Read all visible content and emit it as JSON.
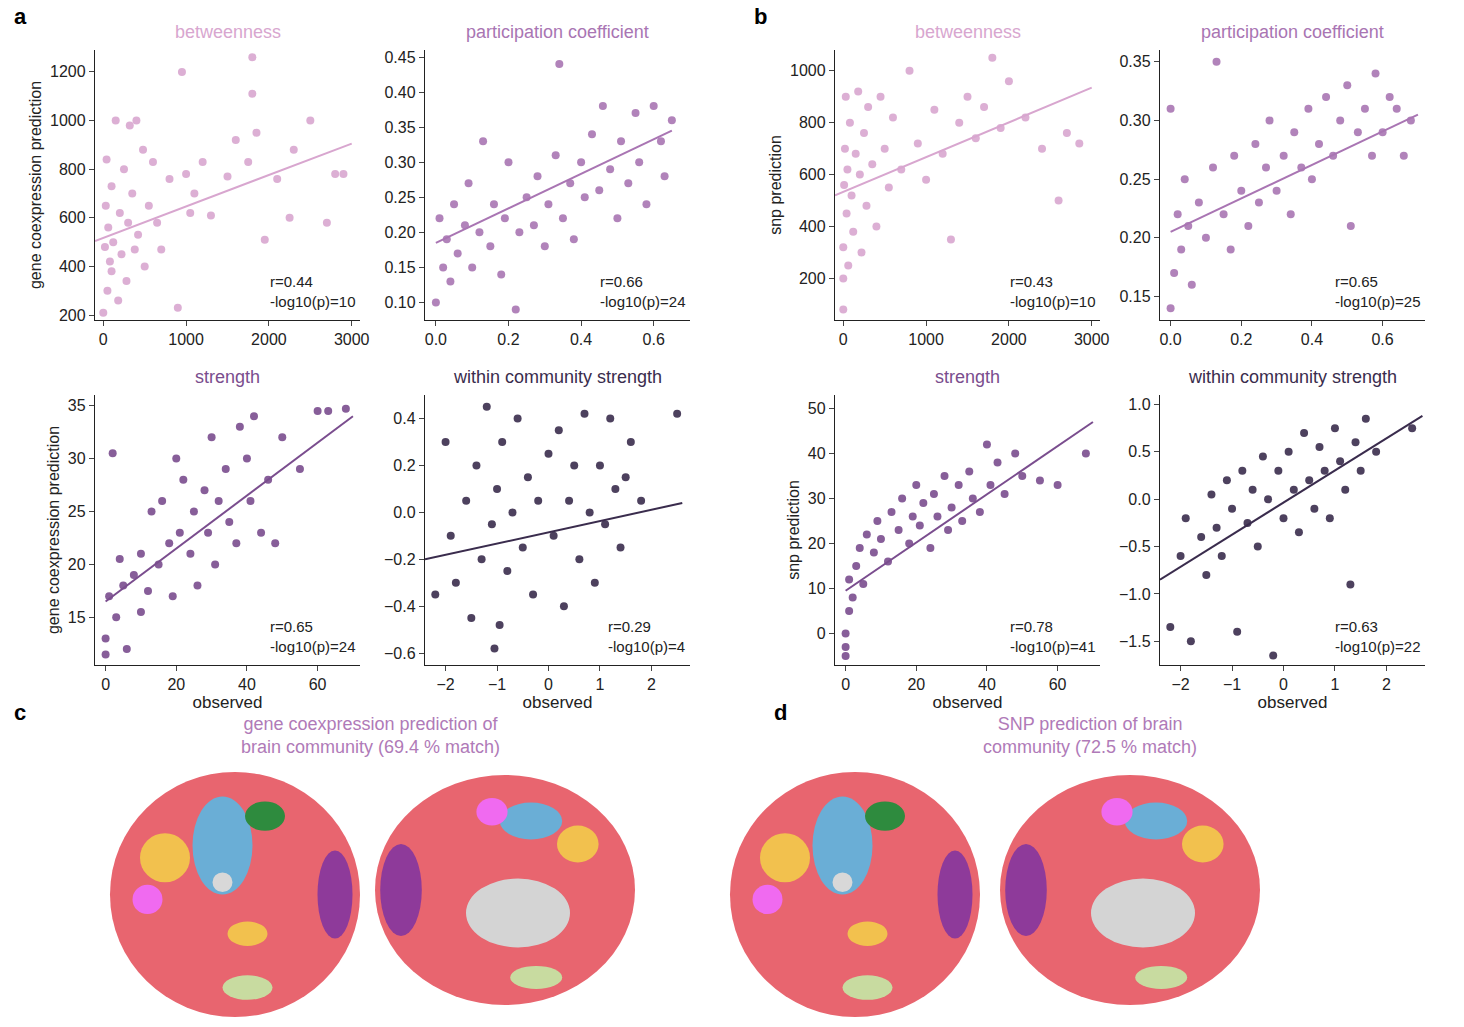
{
  "chart_data": [
    {
      "type": "scatter",
      "panel": "a",
      "title": "betweenness",
      "y_label": "gene coexpression prediction",
      "color": "#d8a6cf",
      "x": [
        0,
        20,
        30,
        40,
        50,
        60,
        80,
        100,
        100,
        120,
        150,
        180,
        200,
        220,
        250,
        280,
        300,
        320,
        350,
        380,
        400,
        420,
        480,
        500,
        550,
        600,
        650,
        700,
        800,
        900,
        950,
        1000,
        1050,
        1100,
        1200,
        1300,
        1500,
        1600,
        1750,
        1800,
        1800,
        1850,
        1950,
        2100,
        2250,
        2300,
        2500,
        2700,
        2800,
        2900
      ],
      "y": [
        210,
        480,
        650,
        840,
        300,
        560,
        420,
        730,
        380,
        500,
        1000,
        260,
        620,
        450,
        800,
        340,
        580,
        980,
        700,
        470,
        1000,
        530,
        880,
        400,
        650,
        830,
        580,
        470,
        760,
        230,
        1200,
        780,
        620,
        700,
        830,
        610,
        770,
        920,
        830,
        1260,
        1110,
        950,
        510,
        760,
        600,
        880,
        1000,
        580,
        780,
        780
      ],
      "fit": {
        "x": [
          -100,
          3000
        ],
        "y": [
          505,
          905
        ]
      },
      "xlim": [
        -100,
        3100
      ],
      "ylim": [
        180,
        1290
      ],
      "xticks": [
        0,
        1000,
        2000,
        3000
      ],
      "yticks": [
        200,
        400,
        600,
        800,
        1000,
        1200
      ],
      "annotations": [
        "r=0.44",
        "-log10(p)=10"
      ]
    },
    {
      "type": "scatter",
      "panel": "a",
      "title": "participation coefficient",
      "color": "#a975b3",
      "x": [
        0.0,
        0.01,
        0.02,
        0.03,
        0.04,
        0.05,
        0.06,
        0.08,
        0.09,
        0.1,
        0.12,
        0.13,
        0.15,
        0.16,
        0.18,
        0.19,
        0.2,
        0.22,
        0.23,
        0.25,
        0.27,
        0.28,
        0.3,
        0.31,
        0.33,
        0.34,
        0.35,
        0.37,
        0.38,
        0.4,
        0.41,
        0.43,
        0.45,
        0.46,
        0.48,
        0.5,
        0.51,
        0.53,
        0.55,
        0.56,
        0.58,
        0.6,
        0.62,
        0.63,
        0.65
      ],
      "y": [
        0.1,
        0.22,
        0.15,
        0.19,
        0.13,
        0.24,
        0.17,
        0.21,
        0.27,
        0.15,
        0.2,
        0.33,
        0.18,
        0.24,
        0.14,
        0.22,
        0.3,
        0.09,
        0.2,
        0.25,
        0.21,
        0.28,
        0.18,
        0.24,
        0.31,
        0.44,
        0.22,
        0.27,
        0.19,
        0.3,
        0.25,
        0.34,
        0.26,
        0.38,
        0.29,
        0.22,
        0.33,
        0.27,
        0.37,
        0.3,
        0.24,
        0.38,
        0.33,
        0.28,
        0.36
      ],
      "fit": {
        "x": [
          0,
          0.65
        ],
        "y": [
          0.185,
          0.345
        ]
      },
      "xlim": [
        -0.03,
        0.7
      ],
      "ylim": [
        0.075,
        0.46
      ],
      "xticks": [
        {
          "value": 0,
          "label": "0.0"
        },
        0.2,
        0.4,
        0.6
      ],
      "yticks": [
        {
          "value": 0.1,
          "label": "0.10"
        },
        0.15,
        {
          "value": 0.2,
          "label": "0.20"
        },
        0.25,
        {
          "value": 0.3,
          "label": "0.30"
        },
        0.35,
        {
          "value": 0.4,
          "label": "0.40"
        },
        0.45
      ],
      "annotations": [
        "r=0.66",
        "-log10(p)=24"
      ]
    },
    {
      "type": "scatter",
      "panel": "a",
      "title": "strength",
      "x_label": "observed",
      "y_label": "gene coexpression prediction",
      "color": "#7a4d8e",
      "x": [
        0,
        0,
        1,
        2,
        3,
        4,
        5,
        6,
        8,
        10,
        10,
        12,
        13,
        15,
        16,
        18,
        19,
        20,
        21,
        22,
        24,
        25,
        26,
        28,
        29,
        30,
        31,
        32,
        34,
        35,
        37,
        38,
        40,
        41,
        42,
        44,
        46,
        48,
        50,
        55,
        60,
        63,
        68
      ],
      "y": [
        11.5,
        13,
        17,
        30.5,
        15,
        20.5,
        18,
        12,
        19,
        21,
        15.5,
        17.5,
        25,
        20,
        26,
        22,
        17,
        30,
        23,
        28,
        21,
        25,
        18,
        27,
        23,
        32,
        20,
        26,
        29,
        24,
        22,
        33,
        30,
        26,
        34,
        23,
        28,
        22,
        32,
        29,
        34.5,
        34.5,
        34.7
      ],
      "fit": {
        "x": [
          0,
          70
        ],
        "y": [
          16.5,
          34
        ]
      },
      "xlim": [
        -3,
        72
      ],
      "ylim": [
        10.5,
        36
      ],
      "xticks": [
        0,
        20,
        40,
        60
      ],
      "yticks": [
        15,
        20,
        25,
        30,
        35
      ],
      "annotations": [
        "r=0.65",
        "-log10(p)=24"
      ]
    },
    {
      "type": "scatter",
      "panel": "a",
      "title": "within community strength",
      "x_label": "observed",
      "color": "#3a2c4d",
      "x": [
        -2.2,
        -2.0,
        -1.9,
        -1.8,
        -1.6,
        -1.5,
        -1.4,
        -1.3,
        -1.2,
        -1.1,
        -1.05,
        -1.0,
        -0.95,
        -0.9,
        -0.8,
        -0.7,
        -0.6,
        -0.5,
        -0.4,
        -0.3,
        -0.2,
        0.0,
        0.1,
        0.2,
        0.3,
        0.4,
        0.5,
        0.6,
        0.7,
        0.8,
        0.9,
        1.0,
        1.1,
        1.2,
        1.3,
        1.4,
        1.5,
        1.6,
        1.8,
        2.5
      ],
      "y": [
        -0.35,
        0.3,
        -0.1,
        -0.3,
        0.05,
        -0.45,
        0.2,
        -0.2,
        0.45,
        -0.05,
        -0.58,
        0.1,
        -0.48,
        0.3,
        -0.25,
        0.0,
        0.4,
        -0.15,
        0.15,
        -0.35,
        0.05,
        0.25,
        -0.1,
        0.35,
        -0.4,
        0.05,
        0.2,
        -0.2,
        0.42,
        0.0,
        -0.3,
        0.2,
        -0.05,
        0.4,
        0.1,
        -0.15,
        0.15,
        0.3,
        0.05,
        0.42
      ],
      "fit": {
        "x": [
          -2.4,
          2.6
        ],
        "y": [
          -0.2,
          0.04
        ]
      },
      "xlim": [
        -2.4,
        2.75
      ],
      "ylim": [
        -0.65,
        0.5
      ],
      "xticks": [
        {
          "value": -2,
          "label": "−2"
        },
        {
          "value": -1,
          "label": "−1"
        },
        0,
        1,
        2
      ],
      "yticks": [
        {
          "value": -0.6,
          "label": "−0.6"
        },
        {
          "value": -0.4,
          "label": "−0.4"
        },
        {
          "value": -0.2,
          "label": "−0.2"
        },
        {
          "value": 0,
          "label": "0.0"
        },
        0.2,
        0.4
      ],
      "annotations": [
        "r=0.29",
        "-log10(p)=4"
      ]
    },
    {
      "type": "scatter",
      "panel": "b",
      "title": "betweenness",
      "y_label": "snp prediction",
      "color": "#d8a6cf",
      "x": [
        0,
        0,
        0,
        10,
        20,
        30,
        40,
        50,
        60,
        80,
        100,
        120,
        150,
        180,
        200,
        220,
        250,
        280,
        300,
        350,
        400,
        450,
        500,
        550,
        600,
        700,
        800,
        900,
        1000,
        1100,
        1200,
        1300,
        1400,
        1500,
        1600,
        1700,
        1800,
        1900,
        2000,
        2200,
        2400,
        2600,
        2700,
        2850
      ],
      "y": [
        80,
        200,
        320,
        560,
        700,
        900,
        450,
        620,
        250,
        800,
        520,
        380,
        680,
        920,
        600,
        300,
        760,
        480,
        860,
        640,
        400,
        900,
        700,
        550,
        820,
        620,
        1000,
        720,
        580,
        850,
        680,
        350,
        800,
        900,
        740,
        860,
        1050,
        780,
        960,
        820,
        700,
        500,
        760,
        720
      ],
      "fit": {
        "x": [
          -100,
          3000
        ],
        "y": [
          520,
          935
        ]
      },
      "xlim": [
        -100,
        3100
      ],
      "ylim": [
        40,
        1080
      ],
      "xticks": [
        0,
        1000,
        2000,
        3000
      ],
      "yticks": [
        200,
        400,
        600,
        800,
        1000
      ],
      "annotations": [
        "r=0.43",
        "-log10(p)=10"
      ]
    },
    {
      "type": "scatter",
      "panel": "b",
      "title": "participation coefficient",
      "color": "#a975b3",
      "x": [
        0.0,
        0.0,
        0.01,
        0.02,
        0.03,
        0.04,
        0.05,
        0.06,
        0.08,
        0.1,
        0.12,
        0.13,
        0.15,
        0.17,
        0.18,
        0.2,
        0.22,
        0.24,
        0.25,
        0.27,
        0.28,
        0.3,
        0.32,
        0.34,
        0.35,
        0.37,
        0.39,
        0.4,
        0.42,
        0.44,
        0.46,
        0.48,
        0.5,
        0.51,
        0.53,
        0.55,
        0.57,
        0.58,
        0.6,
        0.62,
        0.64,
        0.66,
        0.68
      ],
      "y": [
        0.14,
        0.31,
        0.17,
        0.22,
        0.19,
        0.25,
        0.21,
        0.16,
        0.23,
        0.2,
        0.26,
        0.35,
        0.22,
        0.19,
        0.27,
        0.24,
        0.21,
        0.28,
        0.23,
        0.26,
        0.3,
        0.24,
        0.27,
        0.22,
        0.29,
        0.26,
        0.31,
        0.25,
        0.28,
        0.32,
        0.27,
        0.3,
        0.33,
        0.21,
        0.29,
        0.31,
        0.27,
        0.34,
        0.29,
        0.32,
        0.31,
        0.27,
        0.3
      ],
      "fit": {
        "x": [
          0,
          0.7
        ],
        "y": [
          0.205,
          0.305
        ]
      },
      "xlim": [
        -0.03,
        0.72
      ],
      "ylim": [
        0.13,
        0.36
      ],
      "xticks": [
        {
          "value": 0,
          "label": "0.0"
        },
        0.2,
        0.4,
        0.6
      ],
      "yticks": [
        0.15,
        {
          "value": 0.2,
          "label": "0.20"
        },
        0.25,
        {
          "value": 0.3,
          "label": "0.30"
        },
        0.35
      ],
      "annotations": [
        "r=0.65",
        "-log10(p)=25"
      ]
    },
    {
      "type": "scatter",
      "panel": "b",
      "title": "strength",
      "x_label": "observed",
      "y_label": "snp prediction",
      "color": "#7a4d8e",
      "x": [
        0,
        0,
        0,
        1,
        1,
        2,
        3,
        4,
        5,
        6,
        8,
        9,
        10,
        12,
        13,
        15,
        16,
        18,
        19,
        20,
        21,
        22,
        24,
        25,
        26,
        28,
        29,
        30,
        32,
        33,
        35,
        36,
        38,
        40,
        41,
        43,
        45,
        48,
        50,
        55,
        60,
        68
      ],
      "y": [
        -5,
        -3,
        0,
        5,
        12,
        8,
        15,
        19,
        11,
        22,
        18,
        25,
        21,
        16,
        27,
        23,
        30,
        20,
        26,
        33,
        24,
        29,
        19,
        31,
        26,
        35,
        23,
        28,
        33,
        25,
        36,
        30,
        27,
        42,
        33,
        38,
        31,
        40,
        35,
        34,
        33,
        40
      ],
      "fit": {
        "x": [
          0,
          70
        ],
        "y": [
          9.5,
          47
        ]
      },
      "xlim": [
        -3,
        72
      ],
      "ylim": [
        -7,
        53
      ],
      "xticks": [
        0,
        20,
        40,
        60
      ],
      "yticks": [
        0,
        10,
        20,
        30,
        40,
        50
      ],
      "annotations": [
        "r=0.78",
        "-log10(p)=41"
      ]
    },
    {
      "type": "scatter",
      "panel": "b",
      "title": "within community strength",
      "x_label": "observed",
      "color": "#3a2c4d",
      "x": [
        -2.2,
        -2.0,
        -1.9,
        -1.8,
        -1.6,
        -1.5,
        -1.4,
        -1.3,
        -1.2,
        -1.1,
        -1.0,
        -0.9,
        -0.8,
        -0.7,
        -0.6,
        -0.5,
        -0.4,
        -0.3,
        -0.2,
        -0.1,
        0.0,
        0.1,
        0.2,
        0.3,
        0.4,
        0.5,
        0.6,
        0.7,
        0.8,
        0.9,
        1.0,
        1.1,
        1.2,
        1.3,
        1.4,
        1.5,
        1.6,
        1.8,
        2.5
      ],
      "y": [
        -1.35,
        -0.6,
        -0.2,
        -1.5,
        -0.4,
        -0.8,
        0.05,
        -0.3,
        -0.6,
        0.2,
        -0.1,
        -1.4,
        0.3,
        -0.25,
        0.1,
        -0.5,
        0.45,
        0.0,
        -1.65,
        0.3,
        -0.2,
        0.5,
        0.1,
        -0.35,
        0.7,
        0.2,
        -0.1,
        0.55,
        0.3,
        -0.2,
        0.75,
        0.4,
        0.1,
        -0.9,
        0.6,
        0.3,
        0.85,
        0.5,
        0.75
      ],
      "fit": {
        "x": [
          -2.4,
          2.7
        ],
        "y": [
          -0.85,
          0.88
        ]
      },
      "xlim": [
        -2.4,
        2.75
      ],
      "ylim": [
        -1.75,
        1.1
      ],
      "xticks": [
        {
          "value": -2,
          "label": "−2"
        },
        {
          "value": -1,
          "label": "−1"
        },
        0,
        1,
        2
      ],
      "yticks": [
        {
          "value": -1.5,
          "label": "−1.5"
        },
        {
          "value": -1,
          "label": "−1.0"
        },
        {
          "value": -0.5,
          "label": "−0.5"
        },
        {
          "value": 0,
          "label": "0.0"
        },
        0.5,
        {
          "value": 1,
          "label": "1.0"
        }
      ],
      "annotations": [
        "r=0.63",
        "-log10(p)=22"
      ]
    }
  ],
  "brain_maps": [
    {
      "panel": "c",
      "title": "gene coexpression prediction of brain community (69.4 % match)"
    },
    {
      "panel": "d",
      "title": "SNP prediction of brain community (72.5 % match)"
    }
  ]
}
